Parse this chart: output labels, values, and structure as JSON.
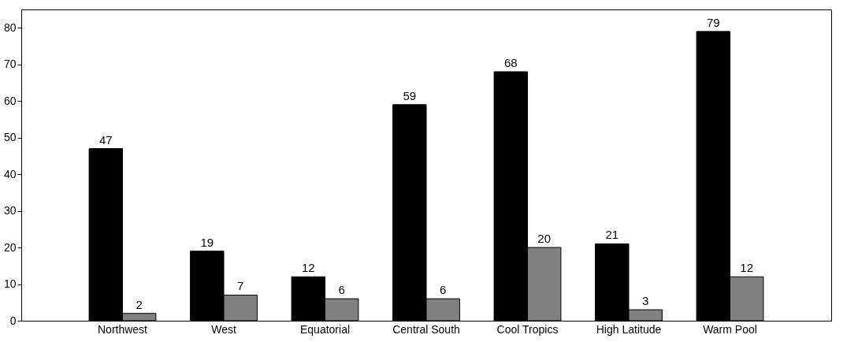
{
  "chart_data": {
    "type": "bar",
    "categories": [
      "Northwest",
      "West",
      "Equatorial",
      "Central South",
      "Cool Tropics",
      "High Latitude",
      "Warm Pool"
    ],
    "series": [
      {
        "color": "#000000",
        "values": [
          47,
          19,
          12,
          59,
          68,
          21,
          79
        ]
      },
      {
        "color": "#808080",
        "values": [
          2,
          7,
          6,
          6,
          20,
          3,
          12
        ]
      }
    ],
    "ylim": [
      0,
      85
    ],
    "yticks": [
      0,
      10,
      20,
      30,
      40,
      50,
      60,
      70,
      80
    ],
    "grid": false,
    "legend": false,
    "data_labels": true
  }
}
